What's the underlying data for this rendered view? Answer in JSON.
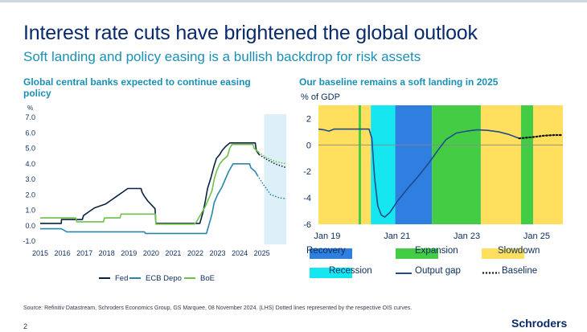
{
  "header": {
    "title": "Interest rate cuts have brightened the global outlook",
    "subtitle": "Soft landing and policy easing is a bullish backdrop for risk assets"
  },
  "left_panel": {
    "title": "Global central banks expected to continue easing policy"
  },
  "right_panel": {
    "title": "Our baseline remains a soft landing in 2025"
  },
  "footer": {
    "source": "Source: Refinitiv Datastream, Schroders Economics Group, GS Marquee, 08 November 2024. (LHS) Dotted lines represented by the respective OIS curves.",
    "page_number": "2",
    "brand": "Schroders"
  },
  "chart_data": [
    {
      "type": "line",
      "title": "Global central banks expected to continue easing policy",
      "ylabel": "%",
      "xlabel": "",
      "xlim": [
        2015,
        2026.1
      ],
      "ylim": [
        -1.0,
        7.0
      ],
      "yticks": [
        "7.0",
        "6.0",
        "5.0",
        "4.0",
        "3.0",
        "2.0",
        "1.0",
        "0.0",
        "-1.0"
      ],
      "ytick_values": [
        7,
        6,
        5,
        4,
        3,
        2,
        1,
        0,
        -1
      ],
      "xticks": [
        "2015",
        "2016",
        "2017",
        "2018",
        "2019",
        "2020",
        "2021",
        "2022",
        "2023",
        "2024",
        "2025"
      ],
      "xtick_values": [
        2015,
        2016,
        2017,
        2018,
        2019,
        2020,
        2021,
        2022,
        2023,
        2024,
        2025
      ],
      "forecast_shade": [
        2025.1,
        2026.1
      ],
      "series": [
        {
          "name": "Fed",
          "color": "#0a2240",
          "points": [
            [
              2015,
              0.15
            ],
            [
              2015.95,
              0.15
            ],
            [
              2015.96,
              0.4
            ],
            [
              2016.9,
              0.4
            ],
            [
              2016.95,
              0.65
            ],
            [
              2017.2,
              0.9
            ],
            [
              2017.45,
              1.15
            ],
            [
              2017.95,
              1.4
            ],
            [
              2018.2,
              1.65
            ],
            [
              2018.45,
              1.9
            ],
            [
              2018.7,
              2.15
            ],
            [
              2018.95,
              2.4
            ],
            [
              2019.55,
              2.4
            ],
            [
              2019.6,
              2.15
            ],
            [
              2019.7,
              1.9
            ],
            [
              2019.85,
              1.6
            ],
            [
              2020.18,
              1.1
            ],
            [
              2020.22,
              0.15
            ],
            [
              2022.2,
              0.15
            ],
            [
              2022.35,
              0.9
            ],
            [
              2022.45,
              1.6
            ],
            [
              2022.55,
              2.4
            ],
            [
              2022.7,
              3.1
            ],
            [
              2022.85,
              3.9
            ],
            [
              2022.95,
              4.35
            ],
            [
              2023.1,
              4.6
            ],
            [
              2023.2,
              4.85
            ],
            [
              2023.35,
              5.1
            ],
            [
              2023.55,
              5.35
            ],
            [
              2024.7,
              5.35
            ],
            [
              2024.75,
              4.85
            ],
            [
              2024.87,
              4.6
            ]
          ],
          "forecast": [
            [
              2024.87,
              4.6
            ],
            [
              2025.2,
              4.3
            ],
            [
              2025.6,
              4.0
            ],
            [
              2026.0,
              3.8
            ],
            [
              2026.1,
              3.75
            ]
          ]
        },
        {
          "name": "ECB Depo",
          "color": "#2a86a8",
          "points": [
            [
              2015,
              -0.2
            ],
            [
              2015.95,
              -0.2
            ],
            [
              2016.2,
              -0.4
            ],
            [
              2019.7,
              -0.4
            ],
            [
              2019.75,
              -0.5
            ],
            [
              2022.5,
              -0.5
            ],
            [
              2022.6,
              0.0
            ],
            [
              2022.75,
              0.75
            ],
            [
              2022.85,
              1.5
            ],
            [
              2023.0,
              2.0
            ],
            [
              2023.2,
              2.5
            ],
            [
              2023.35,
              3.0
            ],
            [
              2023.5,
              3.5
            ],
            [
              2023.7,
              4.0
            ],
            [
              2024.45,
              4.0
            ],
            [
              2024.5,
              3.75
            ],
            [
              2024.7,
              3.5
            ],
            [
              2024.8,
              3.25
            ]
          ],
          "forecast": [
            [
              2024.8,
              3.25
            ],
            [
              2025.1,
              2.6
            ],
            [
              2025.4,
              2.0
            ],
            [
              2025.8,
              1.8
            ],
            [
              2026.1,
              1.75
            ]
          ]
        },
        {
          "name": "BoE",
          "color": "#6cc24a",
          "points": [
            [
              2015,
              0.5
            ],
            [
              2016.6,
              0.5
            ],
            [
              2016.65,
              0.25
            ],
            [
              2017.85,
              0.25
            ],
            [
              2017.9,
              0.5
            ],
            [
              2018.6,
              0.5
            ],
            [
              2018.65,
              0.75
            ],
            [
              2020.2,
              0.75
            ],
            [
              2020.22,
              0.1
            ],
            [
              2021.95,
              0.1
            ],
            [
              2022.05,
              0.25
            ],
            [
              2022.15,
              0.5
            ],
            [
              2022.25,
              0.75
            ],
            [
              2022.35,
              1.0
            ],
            [
              2022.45,
              1.25
            ],
            [
              2022.6,
              1.75
            ],
            [
              2022.75,
              2.25
            ],
            [
              2022.85,
              3.0
            ],
            [
              2022.95,
              3.5
            ],
            [
              2023.1,
              4.0
            ],
            [
              2023.25,
              4.25
            ],
            [
              2023.45,
              4.5
            ],
            [
              2023.55,
              5.0
            ],
            [
              2023.65,
              5.25
            ],
            [
              2024.6,
              5.25
            ],
            [
              2024.65,
              5.0
            ],
            [
              2024.85,
              4.75
            ]
          ],
          "forecast": [
            [
              2024.85,
              4.75
            ],
            [
              2025.2,
              4.4
            ],
            [
              2025.6,
              4.15
            ],
            [
              2026.1,
              4.0
            ]
          ]
        }
      ]
    },
    {
      "type": "line",
      "title": "Our baseline remains a soft landing in 2025",
      "ylabel": "% of GDP",
      "xlabel": "",
      "xlim": [
        2018.75,
        2025.75
      ],
      "ylim": [
        -6,
        3
      ],
      "yticks": [
        "2",
        "0",
        "-2",
        "-4",
        "-6"
      ],
      "ytick_values": [
        2,
        0,
        -2,
        -4,
        -6
      ],
      "xticks": [
        "Jan 19",
        "Jan 21",
        "Jan 23",
        "Jan 25"
      ],
      "xtick_values": [
        2019,
        2021,
        2023,
        2025
      ],
      "phases": [
        {
          "name": "Slowdown",
          "from": 2018.75,
          "to": 2019.9
        },
        {
          "name": "Expansion",
          "from": 2019.9,
          "to": 2019.97
        },
        {
          "name": "Slowdown",
          "from": 2019.97,
          "to": 2020.25
        },
        {
          "name": "Recession",
          "from": 2020.25,
          "to": 2020.95
        },
        {
          "name": "Recovery",
          "from": 2020.95,
          "to": 2022.0
        },
        {
          "name": "Expansion",
          "from": 2022.0,
          "to": 2023.4
        },
        {
          "name": "Slowdown",
          "from": 2023.4,
          "to": 2024.55
        },
        {
          "name": "Expansion",
          "from": 2024.55,
          "to": 2024.9
        },
        {
          "name": "Slowdown",
          "from": 2024.9,
          "to": 2025.75
        }
      ],
      "phase_colors": {
        "Recovery": "#2f7fe0",
        "Expansion": "#44cc44",
        "Slowdown": "#ffdf5d",
        "Recession": "#15e6f0"
      },
      "series": [
        {
          "name": "Output gap",
          "color": "#1f4b8f",
          "points": [
            [
              2018.75,
              1.2
            ],
            [
              2018.9,
              1.15
            ],
            [
              2019.05,
              1.05
            ],
            [
              2019.2,
              1.2
            ],
            [
              2019.5,
              1.2
            ],
            [
              2020.0,
              1.2
            ],
            [
              2020.2,
              1.2
            ],
            [
              2020.28,
              0.5
            ],
            [
              2020.36,
              -2.5
            ],
            [
              2020.45,
              -4.6
            ],
            [
              2020.55,
              -5.3
            ],
            [
              2020.65,
              -5.45
            ],
            [
              2020.8,
              -5.1
            ],
            [
              2021.0,
              -4.3
            ],
            [
              2021.3,
              -3.3
            ],
            [
              2021.6,
              -2.4
            ],
            [
              2021.9,
              -1.4
            ],
            [
              2022.2,
              -0.3
            ],
            [
              2022.4,
              0.4
            ],
            [
              2022.7,
              0.9
            ],
            [
              2023.0,
              1.05
            ],
            [
              2023.3,
              1.15
            ],
            [
              2023.6,
              1.1
            ],
            [
              2023.9,
              1.0
            ],
            [
              2024.2,
              0.8
            ],
            [
              2024.5,
              0.5
            ]
          ]
        },
        {
          "name": "Baseline",
          "color": "#111111",
          "points": [
            [
              2024.5,
              0.5
            ],
            [
              2024.9,
              0.6
            ],
            [
              2025.2,
              0.7
            ],
            [
              2025.5,
              0.75
            ],
            [
              2025.75,
              0.75
            ]
          ]
        }
      ]
    }
  ],
  "legend_left": [
    {
      "label": "Fed",
      "color": "#0a2240"
    },
    {
      "label": "ECB Depo",
      "color": "#2a86a8"
    },
    {
      "label": "BoE",
      "color": "#6cc24a"
    }
  ],
  "legend_right": [
    {
      "label": "Recovery",
      "kind": "box",
      "color": "#2f7fe0"
    },
    {
      "label": "Expansion",
      "kind": "box",
      "color": "#44cc44"
    },
    {
      "label": "Slowdown",
      "kind": "box",
      "color": "#ffdf5d"
    },
    {
      "label": "Recession",
      "kind": "box",
      "color": "#15e6f0"
    },
    {
      "label": "Output gap",
      "kind": "line",
      "color": "#1f4b8f"
    },
    {
      "label": "Baseline",
      "kind": "dots",
      "color": "#111111"
    }
  ]
}
